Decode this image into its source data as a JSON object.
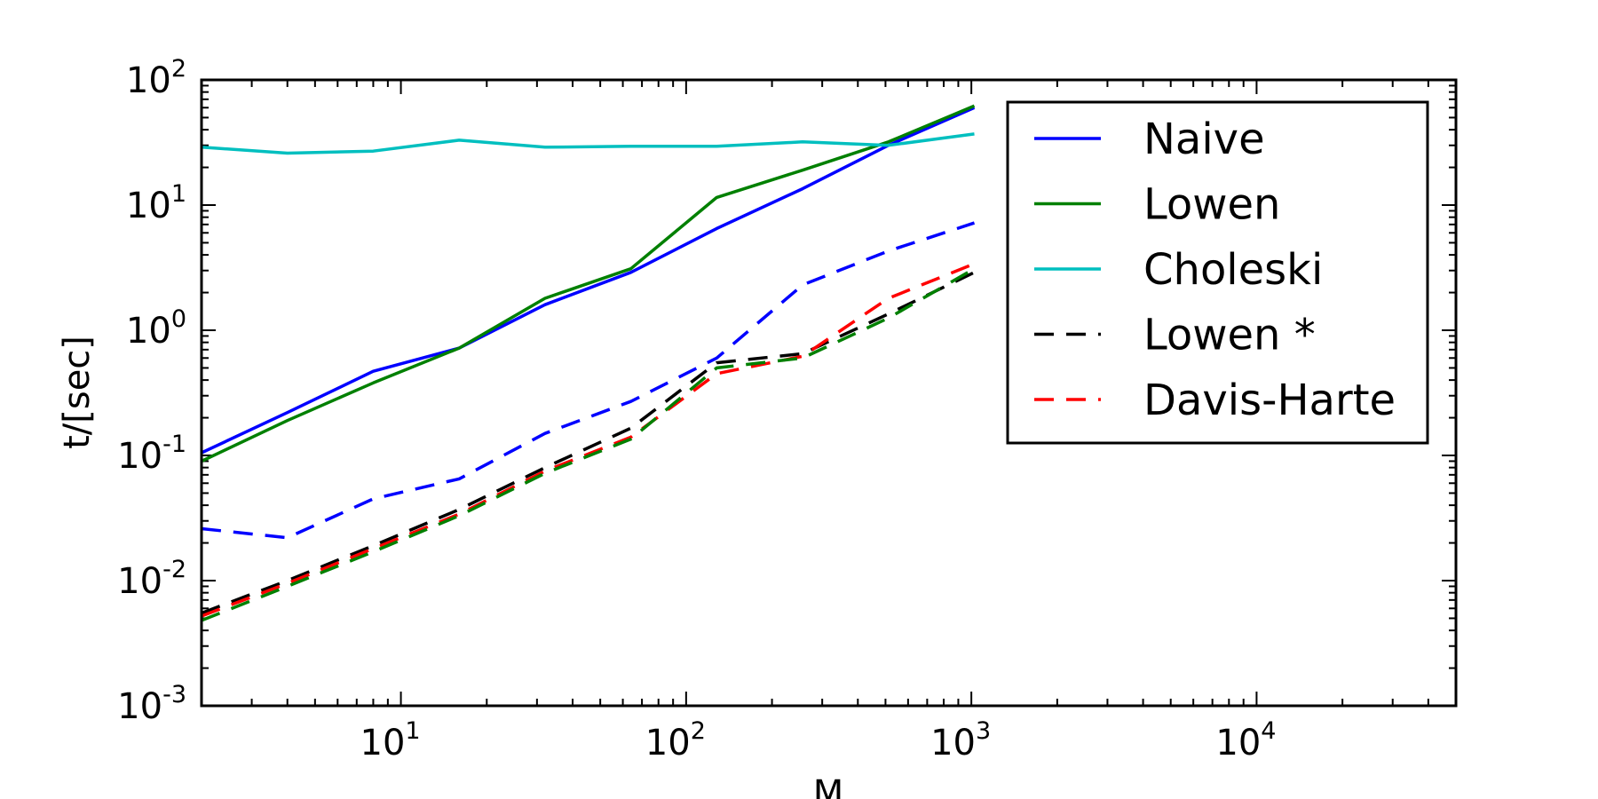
{
  "chart_data": {
    "type": "line",
    "title": "",
    "xlabel": "M",
    "ylabel": "t/[sec]",
    "x_scale": "log",
    "y_scale": "log",
    "xlim": [
      2,
      50000
    ],
    "ylim": [
      0.001,
      100
    ],
    "grid": false,
    "legend_position": "top-right",
    "x_ticks": [
      {
        "value": 10,
        "base": "10",
        "exp": "1"
      },
      {
        "value": 100,
        "base": "10",
        "exp": "2"
      },
      {
        "value": 1000,
        "base": "10",
        "exp": "3"
      },
      {
        "value": 10000,
        "base": "10",
        "exp": "4"
      }
    ],
    "y_ticks": [
      {
        "value": 0.001,
        "base": "10",
        "exp": "-3"
      },
      {
        "value": 0.01,
        "base": "10",
        "exp": "-2"
      },
      {
        "value": 0.1,
        "base": "10",
        "exp": "-1"
      },
      {
        "value": 1,
        "base": "10",
        "exp": "0"
      },
      {
        "value": 10,
        "base": "10",
        "exp": "1"
      },
      {
        "value": 100,
        "base": "10",
        "exp": "2"
      }
    ],
    "x": [
      2,
      4,
      8,
      16,
      32,
      64,
      128,
      256,
      512,
      1024
    ],
    "series": [
      {
        "name": "Naive",
        "color": "#0000ff",
        "style": "solid",
        "in_legend": true,
        "values": [
          0.105,
          0.22,
          0.47,
          0.72,
          1.6,
          2.9,
          6.5,
          13.5,
          30,
          60
        ]
      },
      {
        "name": "Lowen",
        "color": "#008000",
        "style": "solid",
        "in_legend": true,
        "values": [
          0.09,
          0.19,
          0.38,
          0.72,
          1.8,
          3.1,
          11.5,
          19,
          32,
          62
        ]
      },
      {
        "name": "Choleski",
        "color": "#00bfbf",
        "style": "solid",
        "in_legend": true,
        "values": [
          29,
          26,
          27,
          33,
          29,
          29.5,
          29.5,
          32,
          30,
          37
        ]
      },
      {
        "name": "Lowen *",
        "color": "#000000",
        "style": "dashed",
        "in_legend": true,
        "values": [
          0.0055,
          0.01,
          0.019,
          0.037,
          0.08,
          0.165,
          0.55,
          0.65,
          1.35,
          2.9
        ]
      },
      {
        "name": "Davis-Harte",
        "color": "#ff0000",
        "style": "dashed",
        "in_legend": true,
        "values": [
          0.0052,
          0.0095,
          0.018,
          0.034,
          0.075,
          0.14,
          0.45,
          0.62,
          1.8,
          3.4
        ]
      },
      {
        "color": "#0000ff",
        "style": "dashed",
        "in_legend": false,
        "values": [
          0.026,
          0.022,
          0.045,
          0.065,
          0.15,
          0.27,
          0.6,
          2.3,
          4.3,
          7.2
        ]
      },
      {
        "color": "#008000",
        "style": "dashed",
        "in_legend": false,
        "values": [
          0.0048,
          0.009,
          0.017,
          0.033,
          0.072,
          0.135,
          0.5,
          0.6,
          1.25,
          3.1
        ]
      }
    ]
  }
}
